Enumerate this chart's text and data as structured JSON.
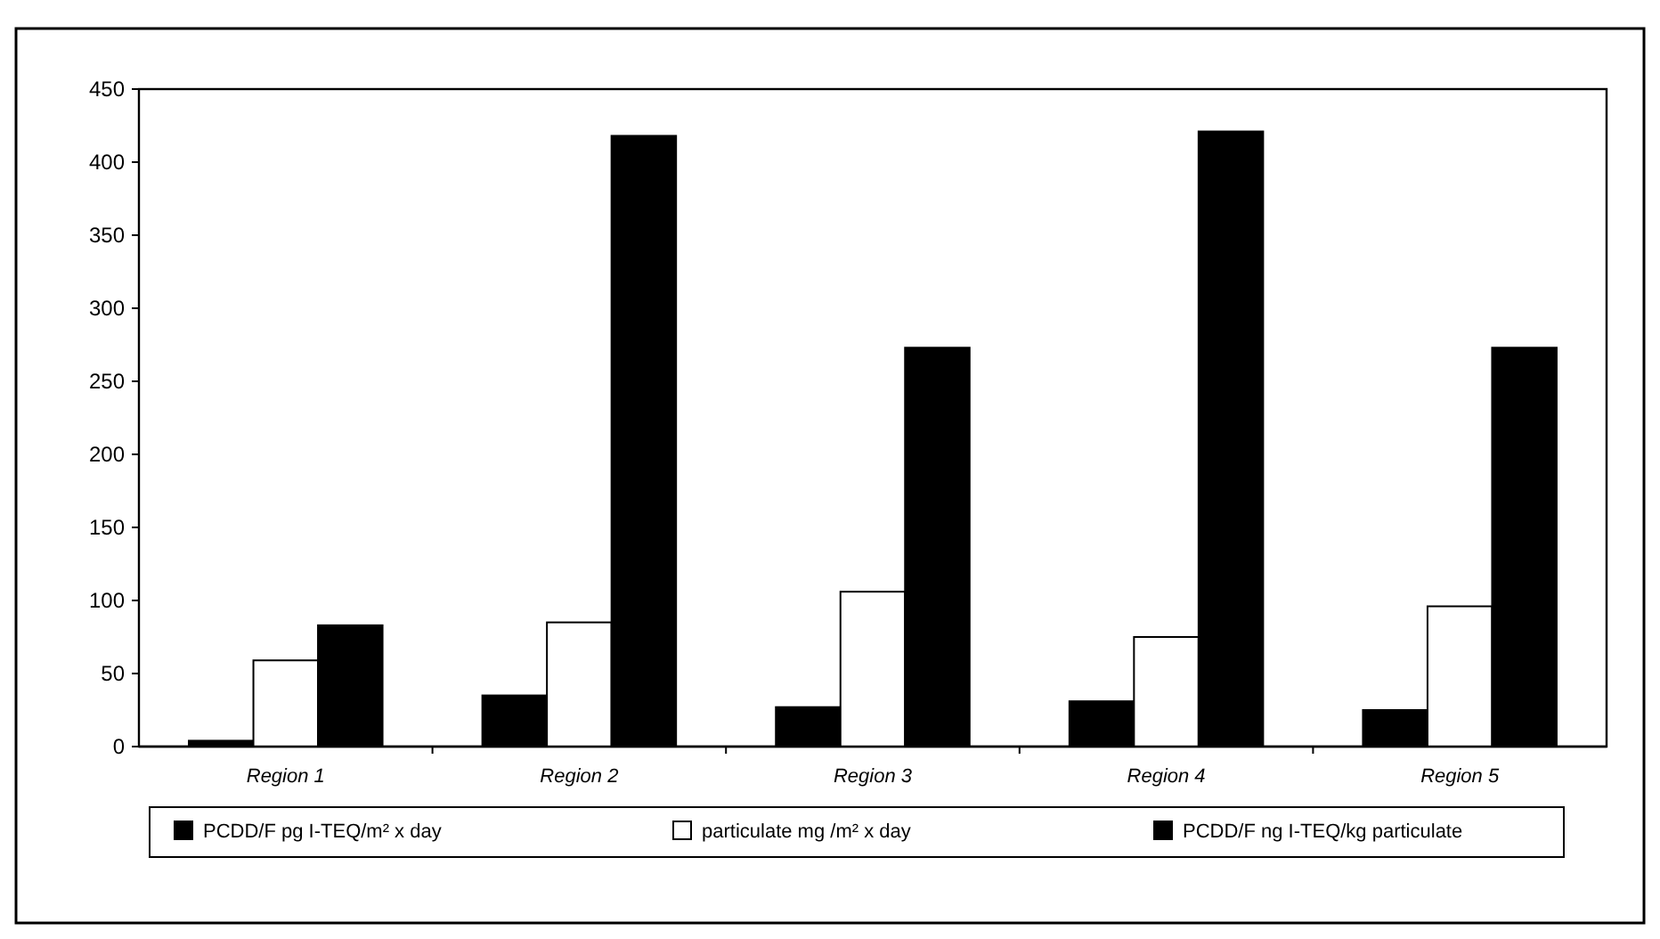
{
  "chart_data": {
    "type": "bar",
    "categories": [
      "Region 1",
      "Region 2",
      "Region 3",
      "Region 4",
      "Region 5"
    ],
    "series": [
      {
        "name": "PCDD/F pg I-TEQ/m² x day",
        "color": "#000000",
        "values": [
          4,
          35,
          27,
          31,
          25
        ]
      },
      {
        "name": "particulate mg /m² x day",
        "color": "#ffffff",
        "values": [
          59,
          85,
          106,
          75,
          96
        ]
      },
      {
        "name": "PCDD/F ng I-TEQ/kg particulate",
        "color": "#000000",
        "values": [
          83,
          418,
          273,
          421,
          273
        ]
      }
    ],
    "ylim": [
      0,
      450
    ],
    "yticks": [
      0,
      50,
      100,
      150,
      200,
      250,
      300,
      350,
      400,
      450
    ],
    "grid": false,
    "legend": "bottom"
  }
}
